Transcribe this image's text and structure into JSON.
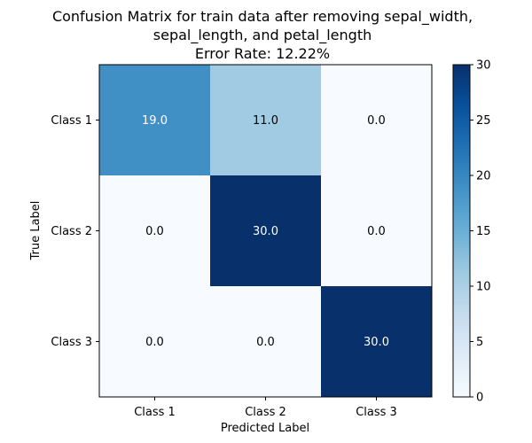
{
  "chart_data": {
    "type": "heatmap",
    "title_lines": [
      "Confusion Matrix for train data after removing sepal_width,",
      "sepal_length, and petal_length",
      "Error Rate: 12.22%"
    ],
    "xlabel": "Predicted Label",
    "ylabel": "True Label",
    "x_categories": [
      "Class 1",
      "Class 2",
      "Class 3"
    ],
    "y_categories": [
      "Class 1",
      "Class 2",
      "Class 3"
    ],
    "values": [
      [
        19.0,
        11.0,
        0.0
      ],
      [
        0.0,
        30.0,
        0.0
      ],
      [
        0.0,
        0.0,
        30.0
      ]
    ],
    "cell_labels": [
      [
        "19.0",
        "11.0",
        "0.0"
      ],
      [
        "0.0",
        "30.0",
        "0.0"
      ],
      [
        "0.0",
        "0.0",
        "30.0"
      ]
    ],
    "colormap": "Blues",
    "color_range": [
      0,
      30
    ],
    "colorbar_ticks": [
      0,
      5,
      10,
      15,
      20,
      25,
      30
    ],
    "colorbar_tick_labels": [
      "0",
      "5",
      "10",
      "15",
      "20",
      "25",
      "30"
    ]
  }
}
